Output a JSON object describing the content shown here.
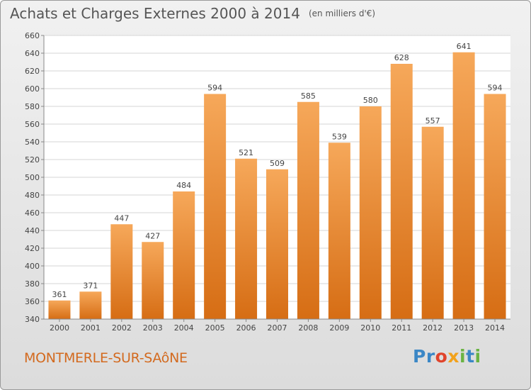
{
  "title": "Achats et Charges Externes 2000 à 2014",
  "unit": "(en milliers d'€)",
  "commune": "MONTMERLE-SUR-SAôNE",
  "brand": {
    "letters": [
      "P",
      "r",
      "o",
      "x",
      "i",
      "t",
      "i"
    ],
    "colors": [
      "#3b87c6",
      "#3b87c6",
      "#e0432b",
      "#f2a21c",
      "#6ab343",
      "#3b87c6",
      "#6ab343"
    ]
  },
  "colors": {
    "bar_top": "#f6a85a",
    "bar_bottom": "#d66d14",
    "commune": "#d36a1f"
  },
  "chart_data": {
    "type": "bar",
    "categories": [
      "2000",
      "2001",
      "2002",
      "2003",
      "2004",
      "2005",
      "2006",
      "2007",
      "2008",
      "2009",
      "2010",
      "2011",
      "2012",
      "2013",
      "2014"
    ],
    "values": [
      361,
      371,
      447,
      427,
      484,
      594,
      521,
      509,
      585,
      539,
      580,
      628,
      557,
      641,
      594
    ],
    "ylim": [
      340,
      660
    ],
    "yticks": [
      340,
      360,
      380,
      400,
      420,
      440,
      460,
      480,
      500,
      520,
      540,
      560,
      580,
      600,
      620,
      640,
      660
    ],
    "grid": true,
    "title": "Achats et Charges Externes 2000 à 2014",
    "xlabel": "",
    "ylabel": ""
  }
}
